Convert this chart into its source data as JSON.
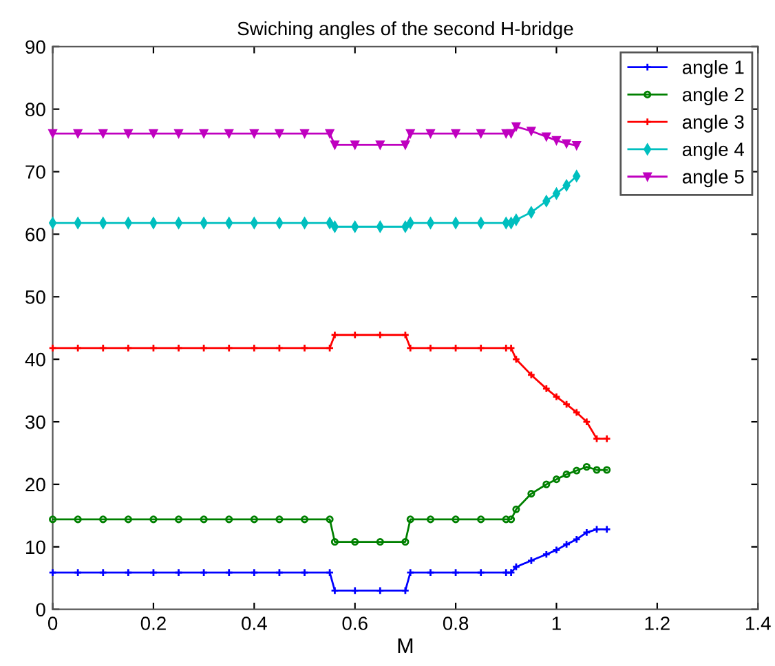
{
  "chart_data": {
    "type": "line",
    "title": "Swiching angles of the second H-bridge",
    "xlabel": "M",
    "x": [
      0,
      0.05,
      0.1,
      0.15,
      0.2,
      0.25,
      0.3,
      0.35,
      0.4,
      0.45,
      0.5,
      0.55,
      0.56,
      0.6,
      0.65,
      0.7,
      0.71,
      0.75,
      0.8,
      0.85,
      0.9,
      0.91,
      0.92,
      0.95,
      0.98,
      1.0,
      1.02,
      1.04,
      1.06,
      1.08,
      1.1
    ],
    "series": [
      {
        "name": "angle 1",
        "color": "#0000ff",
        "marker": "cross",
        "values": [
          5.9,
          5.9,
          5.9,
          5.9,
          5.9,
          5.9,
          5.9,
          5.9,
          5.9,
          5.9,
          5.9,
          5.9,
          3.0,
          3.0,
          3.0,
          3.0,
          5.9,
          5.9,
          5.9,
          5.9,
          5.9,
          5.9,
          6.8,
          7.8,
          8.8,
          9.5,
          10.4,
          11.2,
          12.3,
          12.8,
          12.8
        ]
      },
      {
        "name": "angle 2",
        "color": "#008000",
        "marker": "circle",
        "values": [
          14.4,
          14.4,
          14.4,
          14.4,
          14.4,
          14.4,
          14.4,
          14.4,
          14.4,
          14.4,
          14.4,
          14.4,
          10.8,
          10.8,
          10.8,
          10.8,
          14.4,
          14.4,
          14.4,
          14.4,
          14.4,
          14.4,
          16.0,
          18.5,
          20.0,
          20.8,
          21.6,
          22.2,
          22.8,
          22.3,
          22.3
        ]
      },
      {
        "name": "angle 3",
        "color": "#ff0000",
        "marker": "cross",
        "values": [
          41.8,
          41.8,
          41.8,
          41.8,
          41.8,
          41.8,
          41.8,
          41.8,
          41.8,
          41.8,
          41.8,
          41.8,
          43.9,
          43.9,
          43.9,
          43.9,
          41.8,
          41.8,
          41.8,
          41.8,
          41.8,
          41.8,
          40.0,
          37.5,
          35.3,
          34.0,
          32.8,
          31.5,
          30.0,
          27.3,
          27.3
        ]
      },
      {
        "name": "angle 4",
        "color": "#00bfbf",
        "marker": "diamond",
        "values": [
          61.8,
          61.8,
          61.8,
          61.8,
          61.8,
          61.8,
          61.8,
          61.8,
          61.8,
          61.8,
          61.8,
          61.8,
          61.2,
          61.2,
          61.2,
          61.2,
          61.8,
          61.8,
          61.8,
          61.8,
          61.8,
          61.8,
          62.3,
          63.5,
          65.3,
          66.5,
          67.8,
          69.3,
          null,
          null,
          null
        ]
      },
      {
        "name": "angle 5",
        "color": "#bf00bf",
        "marker": "triangle",
        "values": [
          76.1,
          76.1,
          76.1,
          76.1,
          76.1,
          76.1,
          76.1,
          76.1,
          76.1,
          76.1,
          76.1,
          76.1,
          74.3,
          74.3,
          74.3,
          74.3,
          76.1,
          76.1,
          76.1,
          76.1,
          76.1,
          76.1,
          77.2,
          76.5,
          75.6,
          75.0,
          74.5,
          74.2,
          null,
          null,
          null
        ]
      }
    ],
    "xlim": [
      0,
      1.4
    ],
    "xticks": [
      0,
      0.2,
      0.4,
      0.6,
      0.8,
      1,
      1.2,
      1.4
    ],
    "ylim": [
      0,
      90
    ],
    "yticks": [
      0,
      10,
      20,
      30,
      40,
      50,
      60,
      70,
      80,
      90
    ],
    "legend": "top right",
    "grid": false,
    "line_style": "solid"
  }
}
